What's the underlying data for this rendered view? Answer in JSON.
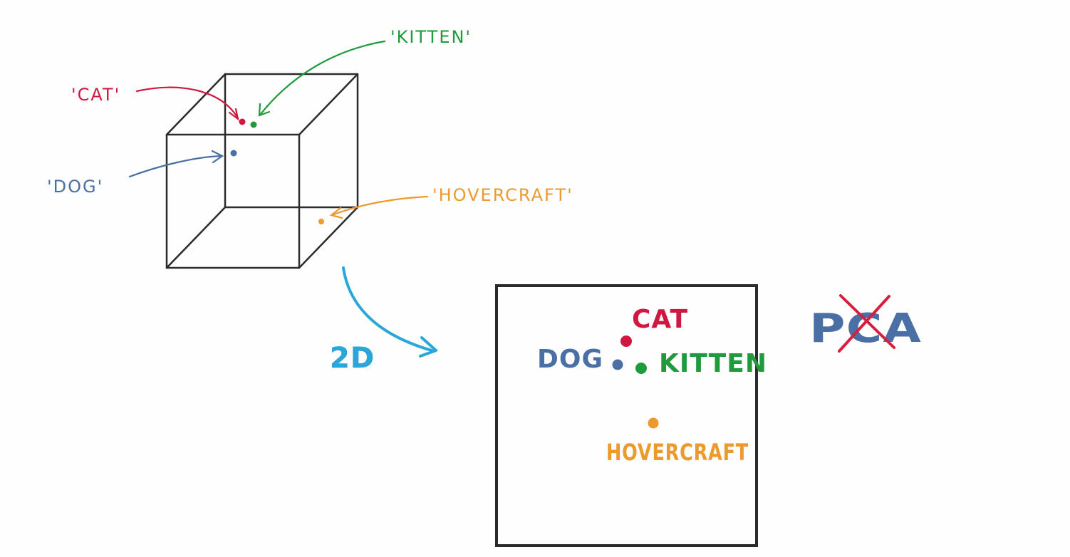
{
  "colors": {
    "cat": "#d0173f",
    "kitten": "#1f9a3d",
    "dog": "#4a6fa5",
    "hovercraft": "#ec9a2c",
    "projection": "#2aa6d8",
    "pca": "#4a6fa5",
    "strike": "#d81e3c",
    "ink": "#2b2b2b"
  },
  "cube_3d": {
    "labels": {
      "cat": "'CAT'",
      "kitten": "'KITTEN'",
      "dog": "'DOG'",
      "hovercraft": "'HOVERCRAFT'"
    }
  },
  "projection": {
    "label": "2D",
    "icon": "curved-arrow-icon"
  },
  "plane_2d": {
    "labels": {
      "cat": "CAT",
      "kitten": "KITTEN",
      "dog": "DOG",
      "hovercraft": "HOVERCRAFT"
    }
  },
  "method": {
    "label": "PCA",
    "struck_through": true
  }
}
